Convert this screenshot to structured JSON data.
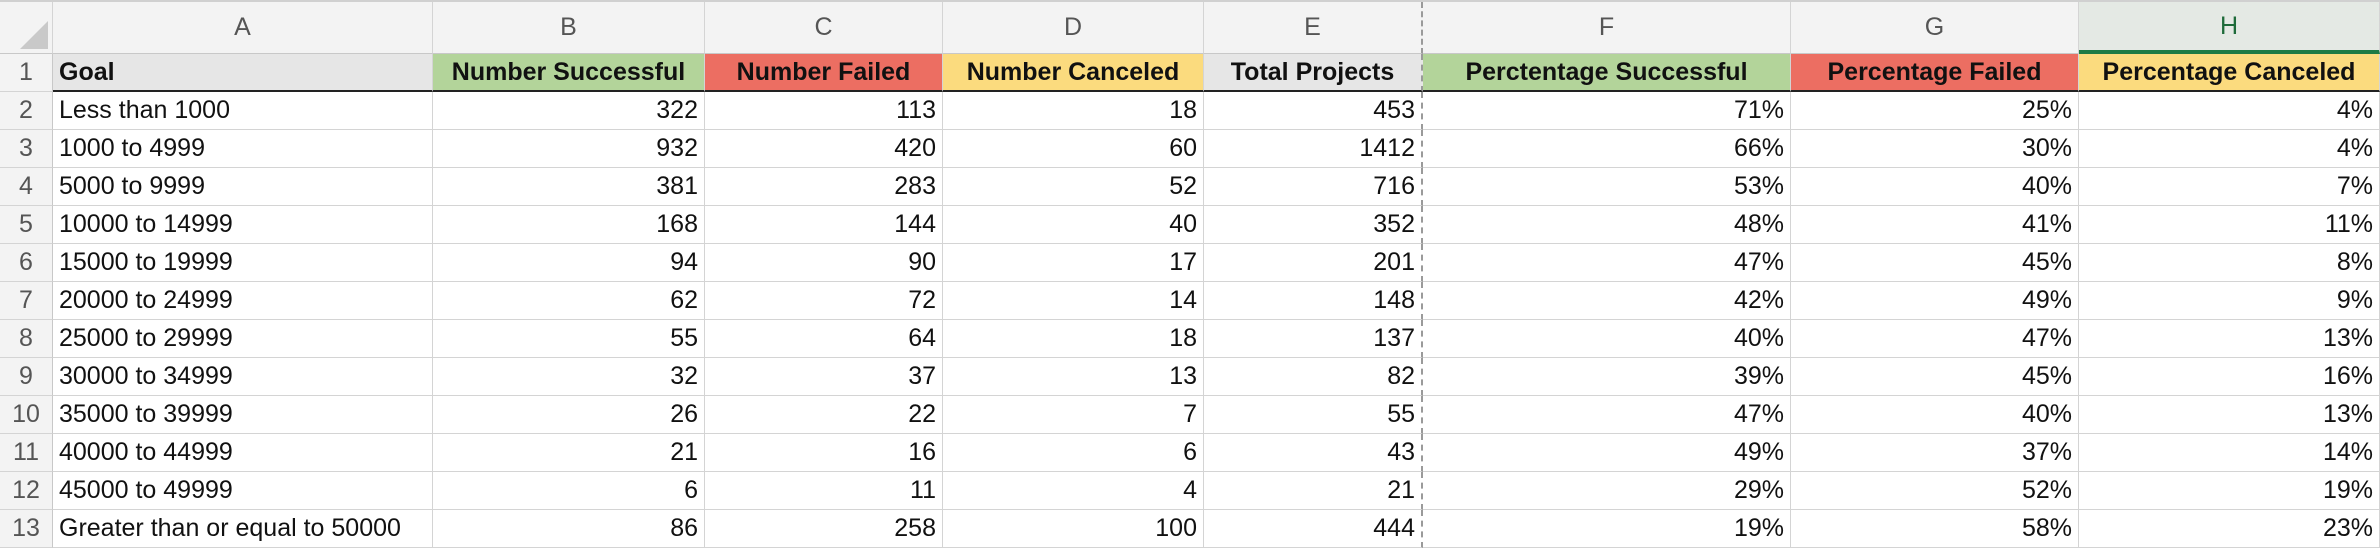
{
  "colors": {
    "successful": "#b3d49a",
    "failed": "#ec6e62",
    "canceled": "#fbdb7e",
    "total": "#e6e6e6",
    "goal": "#e6e6e6"
  },
  "columns": [
    "A",
    "B",
    "C",
    "D",
    "E",
    "F",
    "G",
    "H"
  ],
  "selected_column": "H",
  "row_numbers": [
    "1",
    "2",
    "3",
    "4",
    "5",
    "6",
    "7",
    "8",
    "9",
    "10",
    "11",
    "12",
    "13"
  ],
  "headers": [
    {
      "text": "Goal",
      "role": "goal"
    },
    {
      "text": "Number Successful",
      "role": "successful"
    },
    {
      "text": "Number Failed",
      "role": "failed"
    },
    {
      "text": "Number Canceled",
      "role": "canceled"
    },
    {
      "text": "Total Projects",
      "role": "total"
    },
    {
      "text": "Perctentage Successful",
      "role": "successful"
    },
    {
      "text": "Percentage Failed",
      "role": "failed"
    },
    {
      "text": "Percentage Canceled",
      "role": "canceled"
    }
  ],
  "rows": [
    [
      "Less than 1000",
      "322",
      "113",
      "18",
      "453",
      "71%",
      "25%",
      "4%"
    ],
    [
      "1000 to 4999",
      "932",
      "420",
      "60",
      "1412",
      "66%",
      "30%",
      "4%"
    ],
    [
      "5000 to 9999",
      "381",
      "283",
      "52",
      "716",
      "53%",
      "40%",
      "7%"
    ],
    [
      "10000 to 14999",
      "168",
      "144",
      "40",
      "352",
      "48%",
      "41%",
      "11%"
    ],
    [
      "15000 to 19999",
      "94",
      "90",
      "17",
      "201",
      "47%",
      "45%",
      "8%"
    ],
    [
      "20000 to 24999",
      "62",
      "72",
      "14",
      "148",
      "42%",
      "49%",
      "9%"
    ],
    [
      "25000 to 29999",
      "55",
      "64",
      "18",
      "137",
      "40%",
      "47%",
      "13%"
    ],
    [
      "30000 to 34999",
      "32",
      "37",
      "13",
      "82",
      "39%",
      "45%",
      "16%"
    ],
    [
      "35000 to 39999",
      "26",
      "22",
      "7",
      "55",
      "47%",
      "40%",
      "13%"
    ],
    [
      "40000 to 44999",
      "21",
      "16",
      "6",
      "43",
      "49%",
      "37%",
      "14%"
    ],
    [
      "45000 to 49999",
      "6",
      "11",
      "4",
      "21",
      "29%",
      "52%",
      "19%"
    ],
    [
      "Greater than or equal to 50000",
      "86",
      "258",
      "100",
      "444",
      "19%",
      "58%",
      "23%"
    ]
  ]
}
